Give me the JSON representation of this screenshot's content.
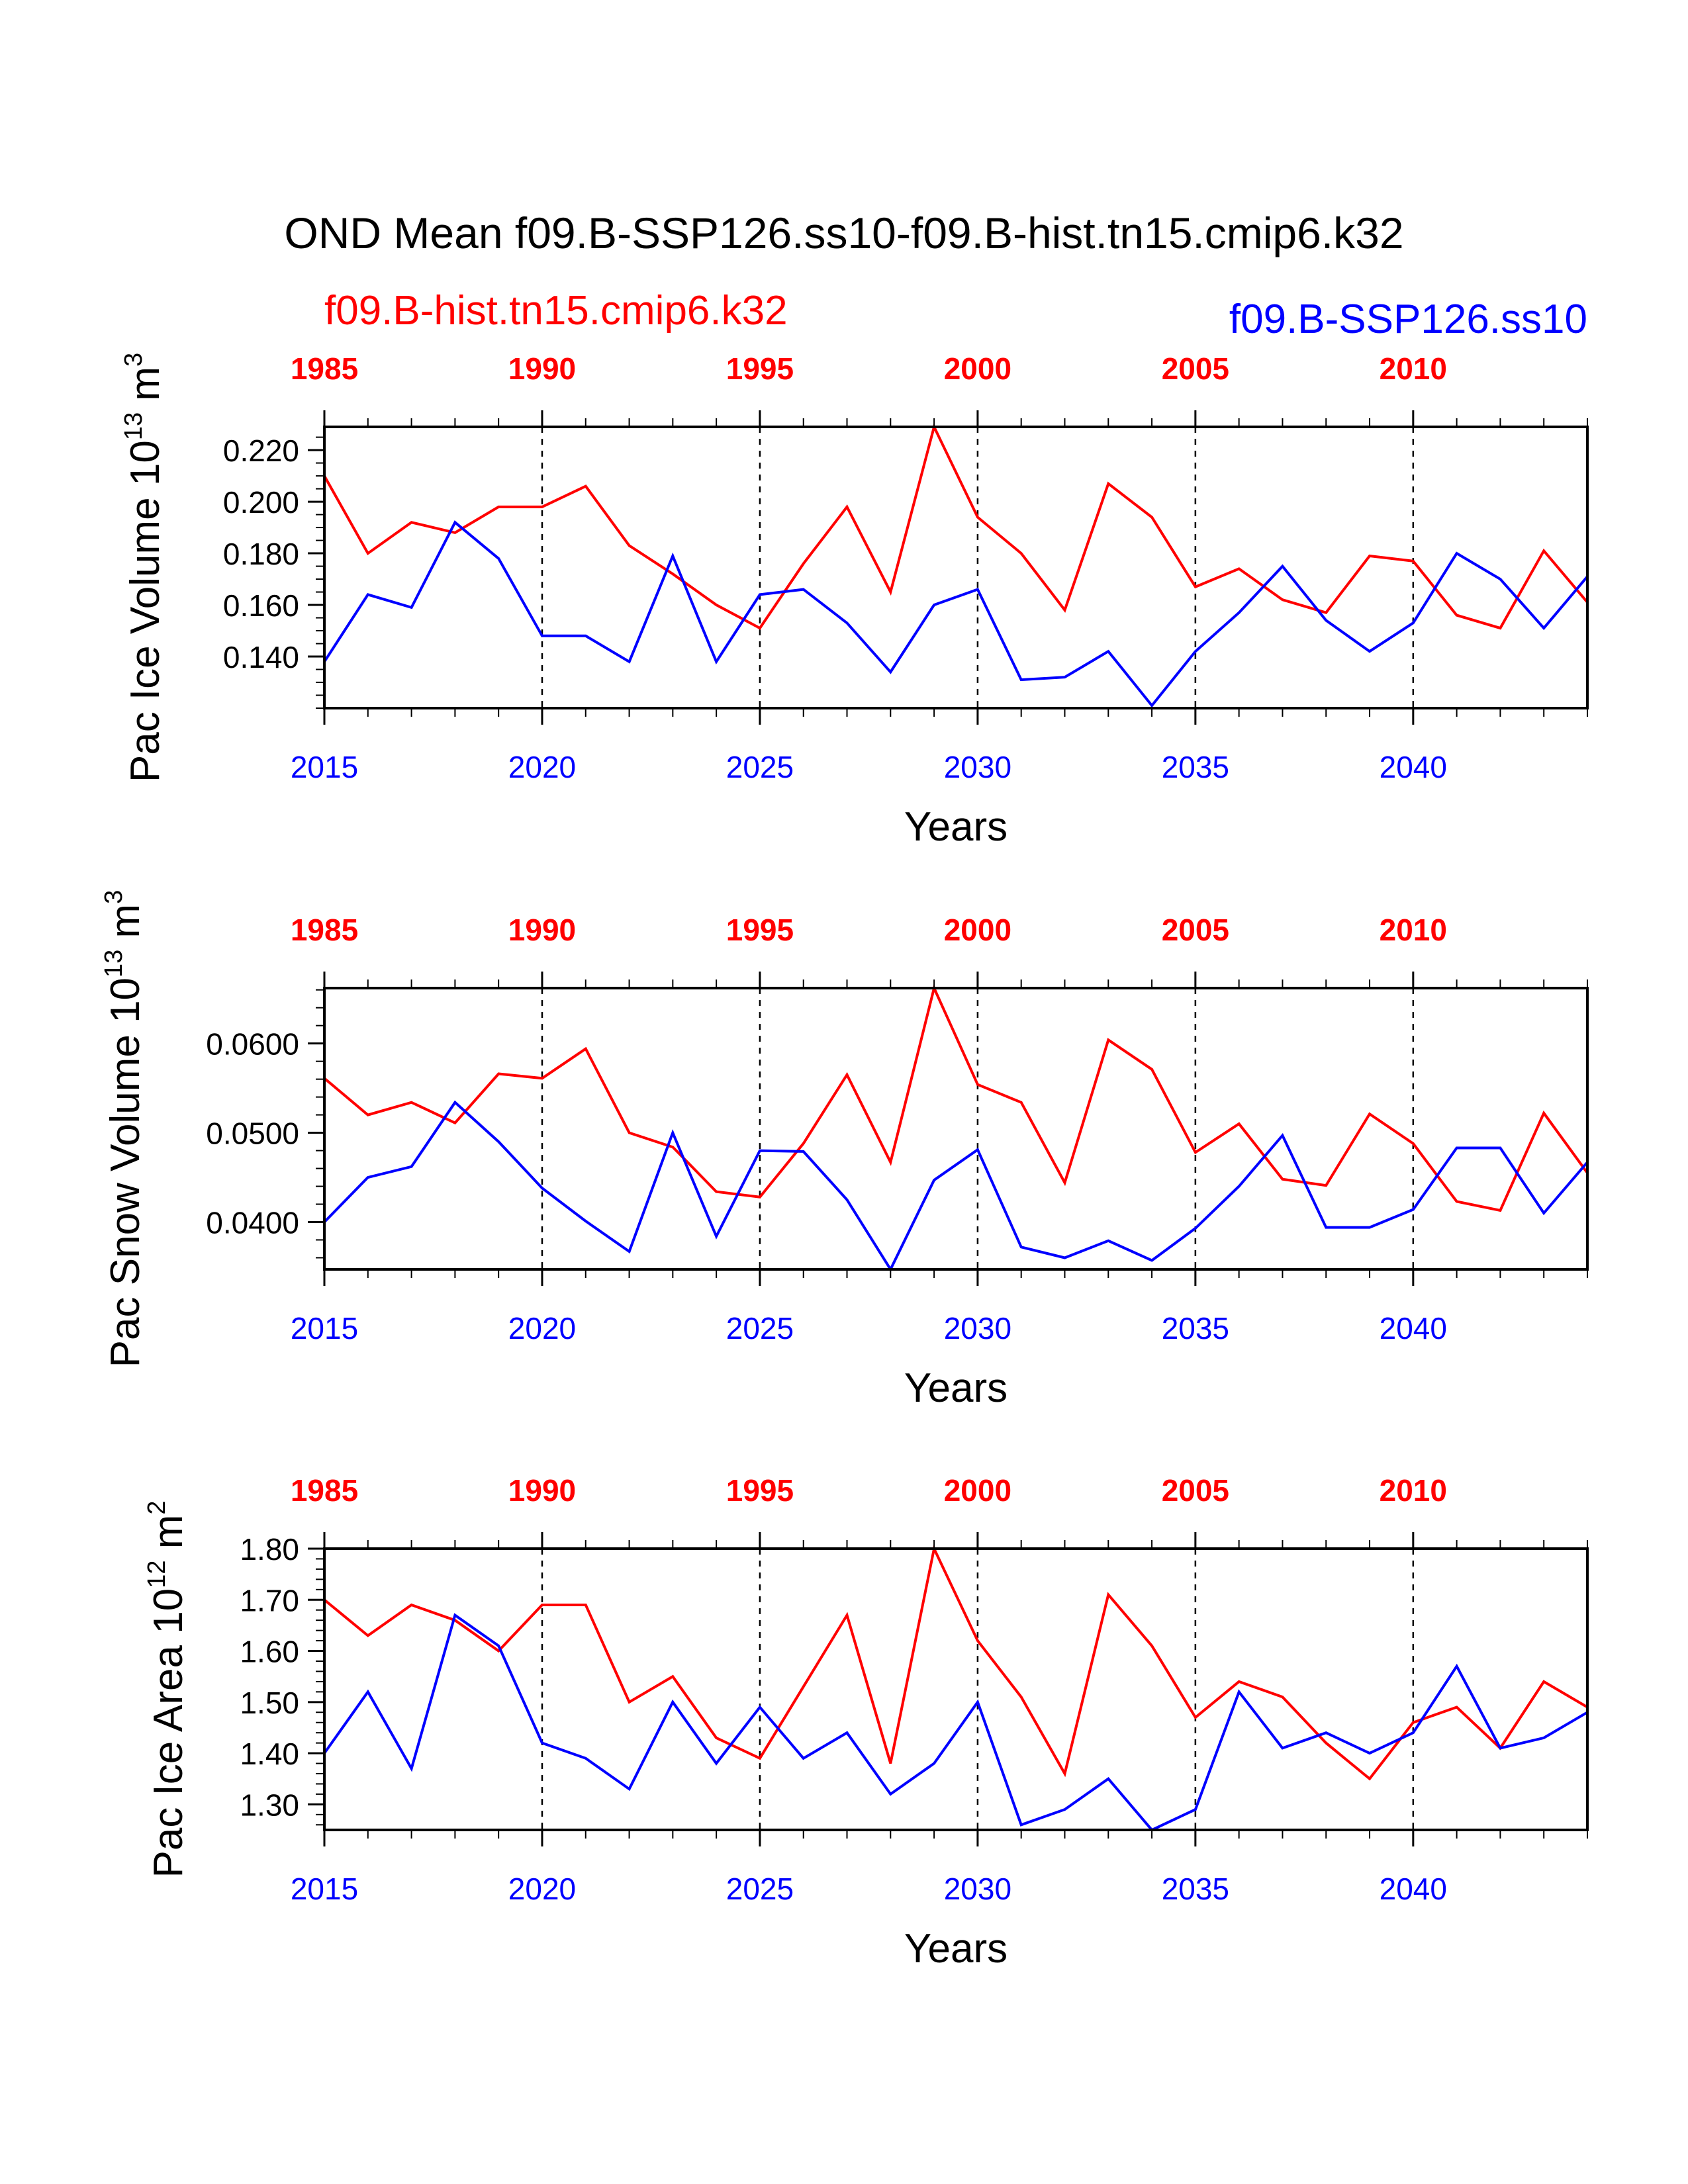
{
  "title": "OND Mean f09.B-SSP126.ss10-f09.B-hist.tn15.cmip6.k32",
  "legend": {
    "hist_label": "f09.B-hist.tn15.cmip6.k32",
    "ssp_label": "f09.B-SSP126.ss10"
  },
  "colors": {
    "hist": "#ff0000",
    "ssp": "#0000ff",
    "axis": "#000000"
  },
  "chart_data": [
    {
      "type": "line",
      "title": "",
      "ylabel": "Pac Ice Volume 10",
      "ylabel_exp": "13",
      "ylabel_unit": " m",
      "ylabel_unit_exp": "3",
      "xlabel": "Years",
      "xlim": [
        2015,
        2044
      ],
      "xlim_top": [
        1985,
        2014
      ],
      "ylim": [
        0.12,
        0.229
      ],
      "yticks": [
        0.14,
        0.16,
        0.18,
        0.2,
        0.22
      ],
      "ytick_labels": [
        "0.140",
        "0.160",
        "0.180",
        "0.200",
        "0.220"
      ],
      "yminor": 0.005,
      "xticks_bottom": [
        2015,
        2020,
        2025,
        2030,
        2035,
        2040
      ],
      "xtick_labels_bottom": [
        "2015",
        "2020",
        "2025",
        "2030",
        "2035",
        "2040"
      ],
      "xticks_top": [
        1985,
        1990,
        1995,
        2000,
        2005,
        2010
      ],
      "xtick_labels_top": [
        "1985",
        "1990",
        "1995",
        "2000",
        "2005",
        "2010"
      ],
      "series": [
        {
          "name": "f09.B-hist.tn15.cmip6.k32",
          "x": [
            2015,
            2016,
            2017,
            2018,
            2019,
            2020,
            2021,
            2022,
            2023,
            2024,
            2025,
            2026,
            2027,
            2028,
            2029,
            2030,
            2031,
            2032,
            2033,
            2034,
            2035,
            2036,
            2037,
            2038,
            2039,
            2040,
            2041,
            2042,
            2043,
            2044
          ],
          "values": [
            0.21,
            0.18,
            0.192,
            0.188,
            0.198,
            0.198,
            0.206,
            0.183,
            0.172,
            0.16,
            0.151,
            0.176,
            0.198,
            0.165,
            0.229,
            0.194,
            0.18,
            0.158,
            0.207,
            0.194,
            0.167,
            0.174,
            0.162,
            0.157,
            0.179,
            0.177,
            0.156,
            0.151,
            0.181,
            0.161
          ]
        },
        {
          "name": "f09.B-SSP126.ss10",
          "x": [
            2015,
            2016,
            2017,
            2018,
            2019,
            2020,
            2021,
            2022,
            2023,
            2024,
            2025,
            2026,
            2027,
            2028,
            2029,
            2030,
            2031,
            2032,
            2033,
            2034,
            2035,
            2036,
            2037,
            2038,
            2039,
            2040,
            2041,
            2042,
            2043,
            2044
          ],
          "values": [
            0.138,
            0.164,
            0.159,
            0.192,
            0.178,
            0.148,
            0.148,
            0.138,
            0.179,
            0.138,
            0.164,
            0.166,
            0.153,
            0.134,
            0.16,
            0.166,
            0.131,
            0.132,
            0.142,
            0.121,
            0.142,
            0.157,
            0.175,
            0.154,
            0.142,
            0.153,
            0.18,
            0.17,
            0.151,
            0.171
          ]
        }
      ]
    },
    {
      "type": "line",
      "title": "",
      "ylabel": "Pac Snow Volume 10",
      "ylabel_exp": "13",
      "ylabel_unit": " m",
      "ylabel_unit_exp": "3",
      "xlabel": "Years",
      "xlim": [
        2015,
        2044
      ],
      "xlim_top": [
        1985,
        2014
      ],
      "ylim": [
        0.0347,
        0.0662
      ],
      "yticks": [
        0.04,
        0.05,
        0.06
      ],
      "ytick_labels": [
        "0.0400",
        "0.0500",
        "0.0600"
      ],
      "yminor": 0.002,
      "xticks_bottom": [
        2015,
        2020,
        2025,
        2030,
        2035,
        2040
      ],
      "xtick_labels_bottom": [
        "2015",
        "2020",
        "2025",
        "2030",
        "2035",
        "2040"
      ],
      "xticks_top": [
        1985,
        1990,
        1995,
        2000,
        2005,
        2010
      ],
      "xtick_labels_top": [
        "1985",
        "1990",
        "1995",
        "2000",
        "2005",
        "2010"
      ],
      "series": [
        {
          "name": "f09.B-hist.tn15.cmip6.k32",
          "x": [
            2015,
            2016,
            2017,
            2018,
            2019,
            2020,
            2021,
            2022,
            2023,
            2024,
            2025,
            2026,
            2027,
            2028,
            2029,
            2030,
            2031,
            2032,
            2033,
            2034,
            2035,
            2036,
            2037,
            2038,
            2039,
            2040,
            2041,
            2042,
            2043,
            2044
          ],
          "values": [
            0.0561,
            0.052,
            0.0534,
            0.0511,
            0.0566,
            0.0561,
            0.0594,
            0.05,
            0.0484,
            0.0434,
            0.0428,
            0.0488,
            0.0565,
            0.0467,
            0.0662,
            0.0554,
            0.0534,
            0.0444,
            0.0604,
            0.0571,
            0.0478,
            0.051,
            0.0448,
            0.0441,
            0.0521,
            0.0488,
            0.0423,
            0.0413,
            0.0522,
            0.0455
          ]
        },
        {
          "name": "f09.B-SSP126.ss10",
          "x": [
            2015,
            2016,
            2017,
            2018,
            2019,
            2020,
            2021,
            2022,
            2023,
            2024,
            2025,
            2026,
            2027,
            2028,
            2029,
            2030,
            2031,
            2032,
            2033,
            2034,
            2035,
            2036,
            2037,
            2038,
            2039,
            2040,
            2041,
            2042,
            2043,
            2044
          ],
          "values": [
            0.04,
            0.045,
            0.0462,
            0.0534,
            0.049,
            0.0438,
            0.0401,
            0.0367,
            0.05,
            0.0384,
            0.048,
            0.0479,
            0.0425,
            0.0347,
            0.0447,
            0.0481,
            0.0372,
            0.036,
            0.0379,
            0.0357,
            0.0393,
            0.044,
            0.0497,
            0.0394,
            0.0394,
            0.0414,
            0.0483,
            0.0483,
            0.041,
            0.0467
          ]
        }
      ]
    },
    {
      "type": "line",
      "title": "",
      "ylabel": "Pac Ice Area 10",
      "ylabel_exp": "12",
      "ylabel_unit": " m",
      "ylabel_unit_exp": "2",
      "xlabel": "Years",
      "xlim": [
        2015,
        2044
      ],
      "xlim_top": [
        1985,
        2014
      ],
      "ylim": [
        1.25,
        1.8
      ],
      "yticks": [
        1.3,
        1.4,
        1.5,
        1.6,
        1.7,
        1.8
      ],
      "ytick_labels": [
        "1.30",
        "1.40",
        "1.50",
        "1.60",
        "1.70",
        "1.80"
      ],
      "yminor": 0.02,
      "xticks_bottom": [
        2015,
        2020,
        2025,
        2030,
        2035,
        2040
      ],
      "xtick_labels_bottom": [
        "2015",
        "2020",
        "2025",
        "2030",
        "2035",
        "2040"
      ],
      "xticks_top": [
        1985,
        1990,
        1995,
        2000,
        2005,
        2010
      ],
      "xtick_labels_top": [
        "1985",
        "1990",
        "1995",
        "2000",
        "2005",
        "2010"
      ],
      "series": [
        {
          "name": "f09.B-hist.tn15.cmip6.k32",
          "x": [
            2015,
            2016,
            2017,
            2018,
            2019,
            2020,
            2021,
            2022,
            2023,
            2024,
            2025,
            2026,
            2027,
            2028,
            2029,
            2030,
            2031,
            2032,
            2033,
            2034,
            2035,
            2036,
            2037,
            2038,
            2039,
            2040,
            2041,
            2042,
            2043,
            2044
          ],
          "values": [
            1.7,
            1.63,
            1.69,
            1.66,
            1.6,
            1.69,
            1.69,
            1.5,
            1.55,
            1.43,
            1.39,
            1.53,
            1.67,
            1.38,
            1.8,
            1.62,
            1.51,
            1.36,
            1.71,
            1.61,
            1.47,
            1.54,
            1.51,
            1.42,
            1.35,
            1.46,
            1.49,
            1.41,
            1.54,
            1.49
          ]
        },
        {
          "name": "f09.B-SSP126.ss10",
          "x": [
            2015,
            2016,
            2017,
            2018,
            2019,
            2020,
            2021,
            2022,
            2023,
            2024,
            2025,
            2026,
            2027,
            2028,
            2029,
            2030,
            2031,
            2032,
            2033,
            2034,
            2035,
            2036,
            2037,
            2038,
            2039,
            2040,
            2041,
            2042,
            2043,
            2044
          ],
          "values": [
            1.4,
            1.52,
            1.37,
            1.67,
            1.61,
            1.42,
            1.39,
            1.33,
            1.5,
            1.38,
            1.49,
            1.39,
            1.44,
            1.32,
            1.38,
            1.5,
            1.26,
            1.29,
            1.35,
            1.25,
            1.29,
            1.52,
            1.41,
            1.44,
            1.4,
            1.44,
            1.57,
            1.41,
            1.43,
            1.48
          ]
        }
      ]
    }
  ]
}
